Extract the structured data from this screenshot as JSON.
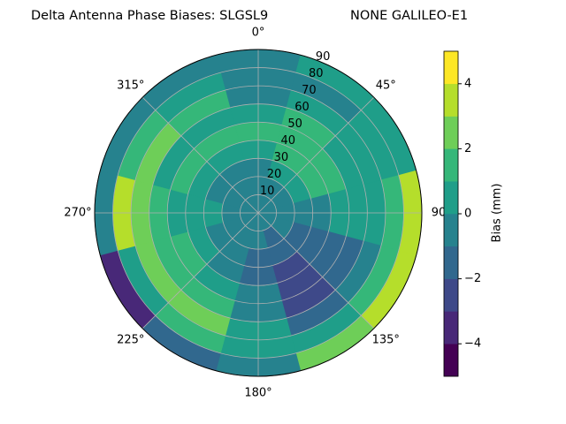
{
  "chart_data": {
    "type": "polar_contour",
    "title": "Delta Antenna Phase Biases: SLGSL9",
    "subtitle": "NONE GALILEO-E1",
    "field": {
      "azimuth": [
        0,
        30,
        60,
        90,
        120,
        150,
        180,
        210,
        240,
        270,
        300,
        330
      ],
      "zenith_bins": [
        0,
        10,
        20,
        30,
        40,
        50,
        60,
        70,
        80,
        90
      ],
      "values": [
        [
          -0.5,
          -0.5,
          -0.5,
          0.5,
          1.5,
          0.5,
          -0.5,
          -0.5,
          -0.5
        ],
        [
          -0.5,
          -0.5,
          0.5,
          1.5,
          1.5,
          1.5,
          0.5,
          -0.5,
          0.5
        ],
        [
          -0.5,
          -0.5,
          0.5,
          1.5,
          1.5,
          0.5,
          0.5,
          0.5,
          0.5
        ],
        [
          -0.5,
          -0.5,
          -0.5,
          -0.5,
          0.5,
          0.5,
          0.5,
          1.5,
          3.5
        ],
        [
          -0.5,
          -0.5,
          -1.5,
          -1.5,
          -1.5,
          -1.5,
          -0.5,
          1.5,
          3.5
        ],
        [
          -0.5,
          -1.5,
          -1.5,
          -2.5,
          -2.5,
          -2.5,
          -1.5,
          0.5,
          2.5
        ],
        [
          -0.5,
          -0.5,
          -1.5,
          -1.5,
          -0.5,
          -0.5,
          0.5,
          0.5,
          -0.5
        ],
        [
          -0.5,
          -0.5,
          -0.5,
          -0.5,
          0.5,
          1.5,
          2.5,
          1.5,
          -1.5
        ],
        [
          -0.5,
          -0.5,
          -0.5,
          0.5,
          1.5,
          1.5,
          2.5,
          0.5,
          -3.5
        ],
        [
          -0.5,
          -0.5,
          0.5,
          0.5,
          0.5,
          1.5,
          2.5,
          3.5,
          -0.5
        ],
        [
          -0.5,
          -0.5,
          -0.5,
          0.5,
          1.5,
          0.5,
          2.5,
          1.5,
          -0.5
        ],
        [
          -0.5,
          -0.5,
          -0.5,
          0.5,
          1.5,
          0.5,
          1.5,
          0.5,
          -0.5
        ]
      ]
    },
    "rlim": [
      0,
      90
    ],
    "rticks": [
      10,
      20,
      30,
      40,
      50,
      60,
      70,
      80,
      90
    ],
    "thetaticks": [
      {
        "value": 0,
        "label": "0°"
      },
      {
        "value": 45,
        "label": "45°"
      },
      {
        "value": 90,
        "label": "90"
      },
      {
        "value": 135,
        "label": "135°"
      },
      {
        "value": 180,
        "label": "180°"
      },
      {
        "value": 225,
        "label": "225°"
      },
      {
        "value": 270,
        "label": "270°"
      },
      {
        "value": 315,
        "label": "315°"
      }
    ],
    "grid": true,
    "levels": [
      -5,
      -4,
      -3,
      -2,
      -1,
      0,
      1,
      2,
      3,
      4,
      5
    ],
    "colors": [
      "#440154",
      "#482878",
      "#3e4989",
      "#31688e",
      "#26828e",
      "#1f9e89",
      "#35b779",
      "#6ece58",
      "#b5de2b",
      "#fde725"
    ],
    "clim": [
      -5,
      5
    ],
    "cticks": [
      {
        "value": -4,
        "label": "−4"
      },
      {
        "value": -2,
        "label": "−2"
      },
      0,
      2,
      4
    ],
    "colorbar_label": "Bias (mm)"
  }
}
